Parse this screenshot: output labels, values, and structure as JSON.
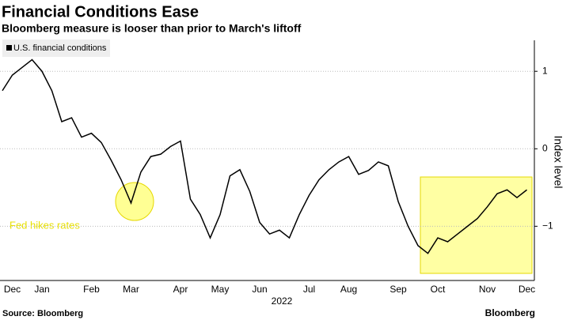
{
  "chart_data": {
    "type": "line",
    "title": "Financial Conditions Ease",
    "subtitle": "Bloomberg measure is looser than prior to March's liftoff",
    "y_label": "Index level",
    "x_label": "2022",
    "annotation": "Fed hikes rates",
    "source": "Source: Bloomberg",
    "brand": "Bloomberg",
    "categories": [
      null,
      "Dec",
      null,
      null,
      "Jan",
      null,
      null,
      null,
      null,
      "Feb",
      null,
      null,
      null,
      "Mar",
      null,
      null,
      null,
      null,
      "Apr",
      null,
      null,
      null,
      "May",
      null,
      null,
      null,
      "Jun",
      null,
      null,
      null,
      null,
      "Jul",
      null,
      null,
      null,
      "Aug",
      null,
      null,
      null,
      null,
      "Sep",
      null,
      null,
      null,
      "Oct",
      null,
      null,
      null,
      null,
      "Nov",
      null,
      null,
      null,
      "Dec"
    ],
    "series": [
      {
        "name": "U.S. financial conditions",
        "color": "#000000",
        "values": [
          0.75,
          0.95,
          1.05,
          1.15,
          1.0,
          0.75,
          0.35,
          0.4,
          0.15,
          0.2,
          0.08,
          -0.15,
          -0.4,
          -0.7,
          -0.3,
          -0.1,
          -0.07,
          0.03,
          0.1,
          -0.65,
          -0.85,
          -1.15,
          -0.85,
          -0.35,
          -0.27,
          -0.55,
          -0.95,
          -1.1,
          -1.05,
          -1.15,
          -0.85,
          -0.6,
          -0.4,
          -0.27,
          -0.17,
          -0.1,
          -0.33,
          -0.28,
          -0.17,
          -0.22,
          -0.68,
          -1.0,
          -1.25,
          -1.35,
          -1.15,
          -1.2,
          -1.1,
          -1.0,
          -0.9,
          -0.75,
          -0.58,
          -0.53,
          -0.63,
          -0.53
        ]
      }
    ],
    "ylim": [
      -1.7,
      1.4
    ],
    "yticks": [
      1,
      0,
      {
        "value": -1,
        "label": "−1"
      }
    ],
    "grid": true,
    "legend": "upper left"
  }
}
